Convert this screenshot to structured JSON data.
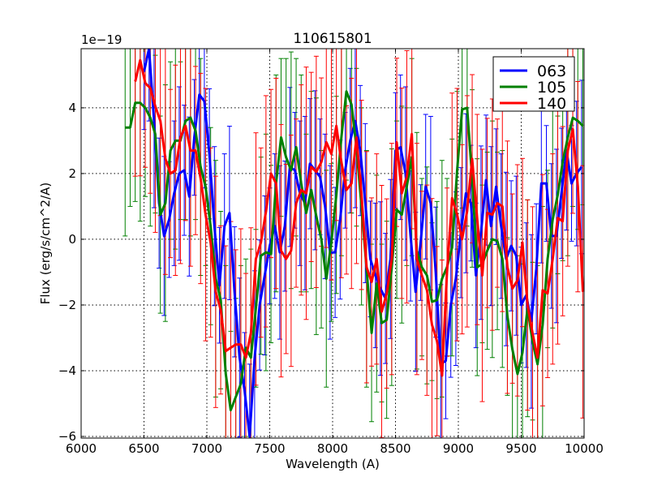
{
  "chart_data": {
    "type": "line",
    "title": "110615801",
    "xlabel": "Wavelength (A)",
    "ylabel": "Flux (erg/s/cm^2/A)",
    "y_offset_label": "1e−19",
    "xlim": [
      6000,
      10000
    ],
    "ylim": [
      -6.05,
      5.8
    ],
    "xticks": [
      6000,
      6500,
      7000,
      7500,
      8000,
      8500,
      9000,
      9500,
      10000
    ],
    "xtick_labels": [
      "6000",
      "6500",
      "7000",
      "7500",
      "8000",
      "8500",
      "9000",
      "9500",
      "10000"
    ],
    "yticks": [
      -6,
      -4,
      -2,
      0,
      2,
      4
    ],
    "ytick_labels": [
      "−6",
      "−4",
      "−2",
      "0",
      "2",
      "4"
    ],
    "grid": true,
    "legend_position": "top-right",
    "series": [
      {
        "name": "063",
        "color": "#0000ff",
        "x_start": 6500,
        "x_step": 40,
        "yerr": 2.2,
        "values": [
          5.1,
          5.8,
          3.6,
          1.1,
          0.1,
          0.6,
          1.4,
          2.0,
          2.1,
          1.3,
          3.1,
          4.4,
          4.2,
          2.6,
          0.4,
          -1.4,
          0.4,
          0.8,
          -1.6,
          -3.6,
          -4.6,
          -6.0,
          -3.6,
          -2.0,
          -1.1,
          -0.2,
          0.4,
          -0.4,
          0.4,
          2.2,
          2.1,
          1.4,
          1.1,
          2.3,
          2.1,
          1.9,
          1.0,
          -0.4,
          -0.4,
          0.6,
          2.1,
          3.0,
          3.6,
          2.7,
          1.1,
          -0.6,
          -1.1,
          -1.5,
          -1.8,
          -0.6,
          2.7,
          2.8,
          2.0,
          0.1,
          -1.6,
          -0.1,
          1.6,
          1.1,
          -1.0,
          -3.8,
          -3.7,
          -2.0,
          -1.2,
          0.2,
          1.4,
          1.1,
          -1.1,
          0.2,
          1.8,
          0.4,
          1.6,
          0.4,
          -0.6,
          -0.2,
          -0.5,
          -2.0,
          -1.7,
          -2.5,
          -0.9,
          1.7,
          1.7,
          0.1,
          0.1,
          1.4,
          2.7,
          1.7,
          2.0,
          2.2
        ]
      },
      {
        "name": "105",
        "color": "#008000",
        "x_start": 6350,
        "x_step": 40,
        "yerr": 3.0,
        "values": [
          3.4,
          3.4,
          4.15,
          4.15,
          4.0,
          3.7,
          3.2,
          0.75,
          1.1,
          2.7,
          3.0,
          3.0,
          3.6,
          3.7,
          3.3,
          2.2,
          1.6,
          0.4,
          -1.2,
          -1.85,
          -4.1,
          -5.2,
          -4.8,
          -4.4,
          -3.3,
          -3.6,
          -2.1,
          -0.5,
          -0.4,
          -0.45,
          1.7,
          3.1,
          2.5,
          2.1,
          2.8,
          1.7,
          0.8,
          1.5,
          0.7,
          0,
          -1.2,
          -0.1,
          1.35,
          3.1,
          4.5,
          4.1,
          2.8,
          1.0,
          -0.9,
          -2.85,
          -1.35,
          -2.55,
          -2.45,
          -0.85,
          0.9,
          0.75,
          1.6,
          2.5,
          -0.35,
          -0.85,
          -1.1,
          -1.9,
          -1.85,
          -1.2,
          -0.85,
          -0.25,
          2.1,
          3.95,
          4.0,
          1.85,
          -0.85,
          -0.75,
          -0.35,
          0,
          -0.05,
          -0.6,
          -2.35,
          -3.35,
          -4.1,
          -3.45,
          -2.1,
          -3.1,
          -3.8,
          -2.6,
          -0.6,
          0.6,
          1.35,
          2.35,
          3.1,
          3.7,
          3.6,
          3.45
        ]
      },
      {
        "name": "140",
        "color": "#ff0000",
        "x_start": 6430,
        "x_step": 40,
        "yerr": 3.2,
        "values": [
          4.8,
          5.45,
          4.75,
          4.6,
          4.05,
          3.6,
          2.45,
          2.0,
          2.1,
          3.1,
          3.45,
          2.7,
          2.7,
          1.85,
          0.75,
          -0.1,
          -1.6,
          -2.15,
          -3.4,
          -3.3,
          -3.2,
          -3.2,
          -3.6,
          -2.85,
          -0.6,
          -0.1,
          0.85,
          2.0,
          1.7,
          -0.35,
          -0.6,
          -0.35,
          1.1,
          1.5,
          1.4,
          2.2,
          2.05,
          2.35,
          2.95,
          2.6,
          3.45,
          2.35,
          1.5,
          1.7,
          3.1,
          1.35,
          -0.85,
          -1.3,
          -0.6,
          -2.2,
          -1.65,
          -0.6,
          2.95,
          1.4,
          1.9,
          3.2,
          -0.6,
          -1.1,
          -1.55,
          -2.6,
          -3.1,
          -4.15,
          -1.0,
          1.25,
          0.75,
          0,
          0.85,
          2.45,
          0.6,
          -1.1,
          0.8,
          0.75,
          1.1,
          1.0,
          -0.85,
          -1.5,
          -1.25,
          -0.1,
          -2.0,
          -2.85,
          -3.6,
          -1.55,
          -1.65,
          -0.6,
          0.65,
          0.55,
          2.7,
          3.35,
          1.6,
          -1.6
        ]
      }
    ]
  }
}
